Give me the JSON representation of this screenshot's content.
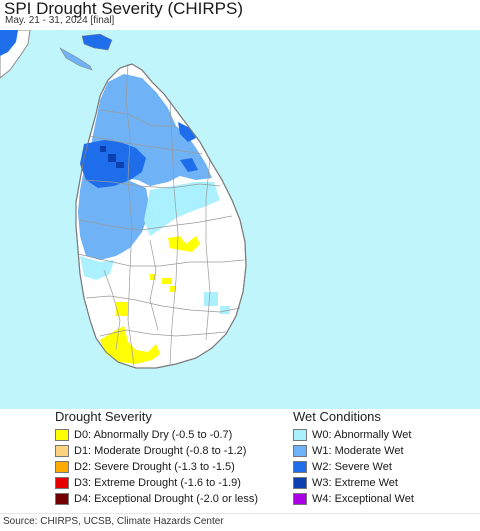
{
  "header": {
    "title": "SPI Drought Severity (CHIRPS)",
    "subtitle": "May. 21 - 31, 2024 [final]"
  },
  "map": {
    "ocean_color": "#bff5fb",
    "land_color": "#ffffff",
    "border_color": "#9a9a9a"
  },
  "legend": {
    "drought_heading": "Drought Severity",
    "drought_items": [
      {
        "label": "D0: Abnormally Dry (-0.5 to -0.7)",
        "color": "#ffff00"
      },
      {
        "label": "D1: Moderate Drought (-0.8 to -1.2)",
        "color": "#fcd37f"
      },
      {
        "label": "D2: Severe Drought (-1.3 to -1.5)",
        "color": "#ffaa00"
      },
      {
        "label": "D3: Extreme Drought (-1.6 to -1.9)",
        "color": "#e60000"
      },
      {
        "label": "D4: Exceptional Drought (-2.0 or less)",
        "color": "#730000"
      }
    ],
    "wet_heading": "Wet Conditions",
    "wet_items": [
      {
        "label": "W0: Abnormally Wet",
        "color": "#aaf0ff"
      },
      {
        "label": "W1: Moderate Wet",
        "color": "#6fb2f5"
      },
      {
        "label": "W2: Severe Wet",
        "color": "#1e6eeb"
      },
      {
        "label": "W3: Extreme Wet",
        "color": "#0c3fb0"
      },
      {
        "label": "W4: Exceptional Wet",
        "color": "#aa00e6"
      }
    ]
  },
  "footer": {
    "source": "Source: CHIRPS, UCSB, Climate Hazards Center"
  }
}
